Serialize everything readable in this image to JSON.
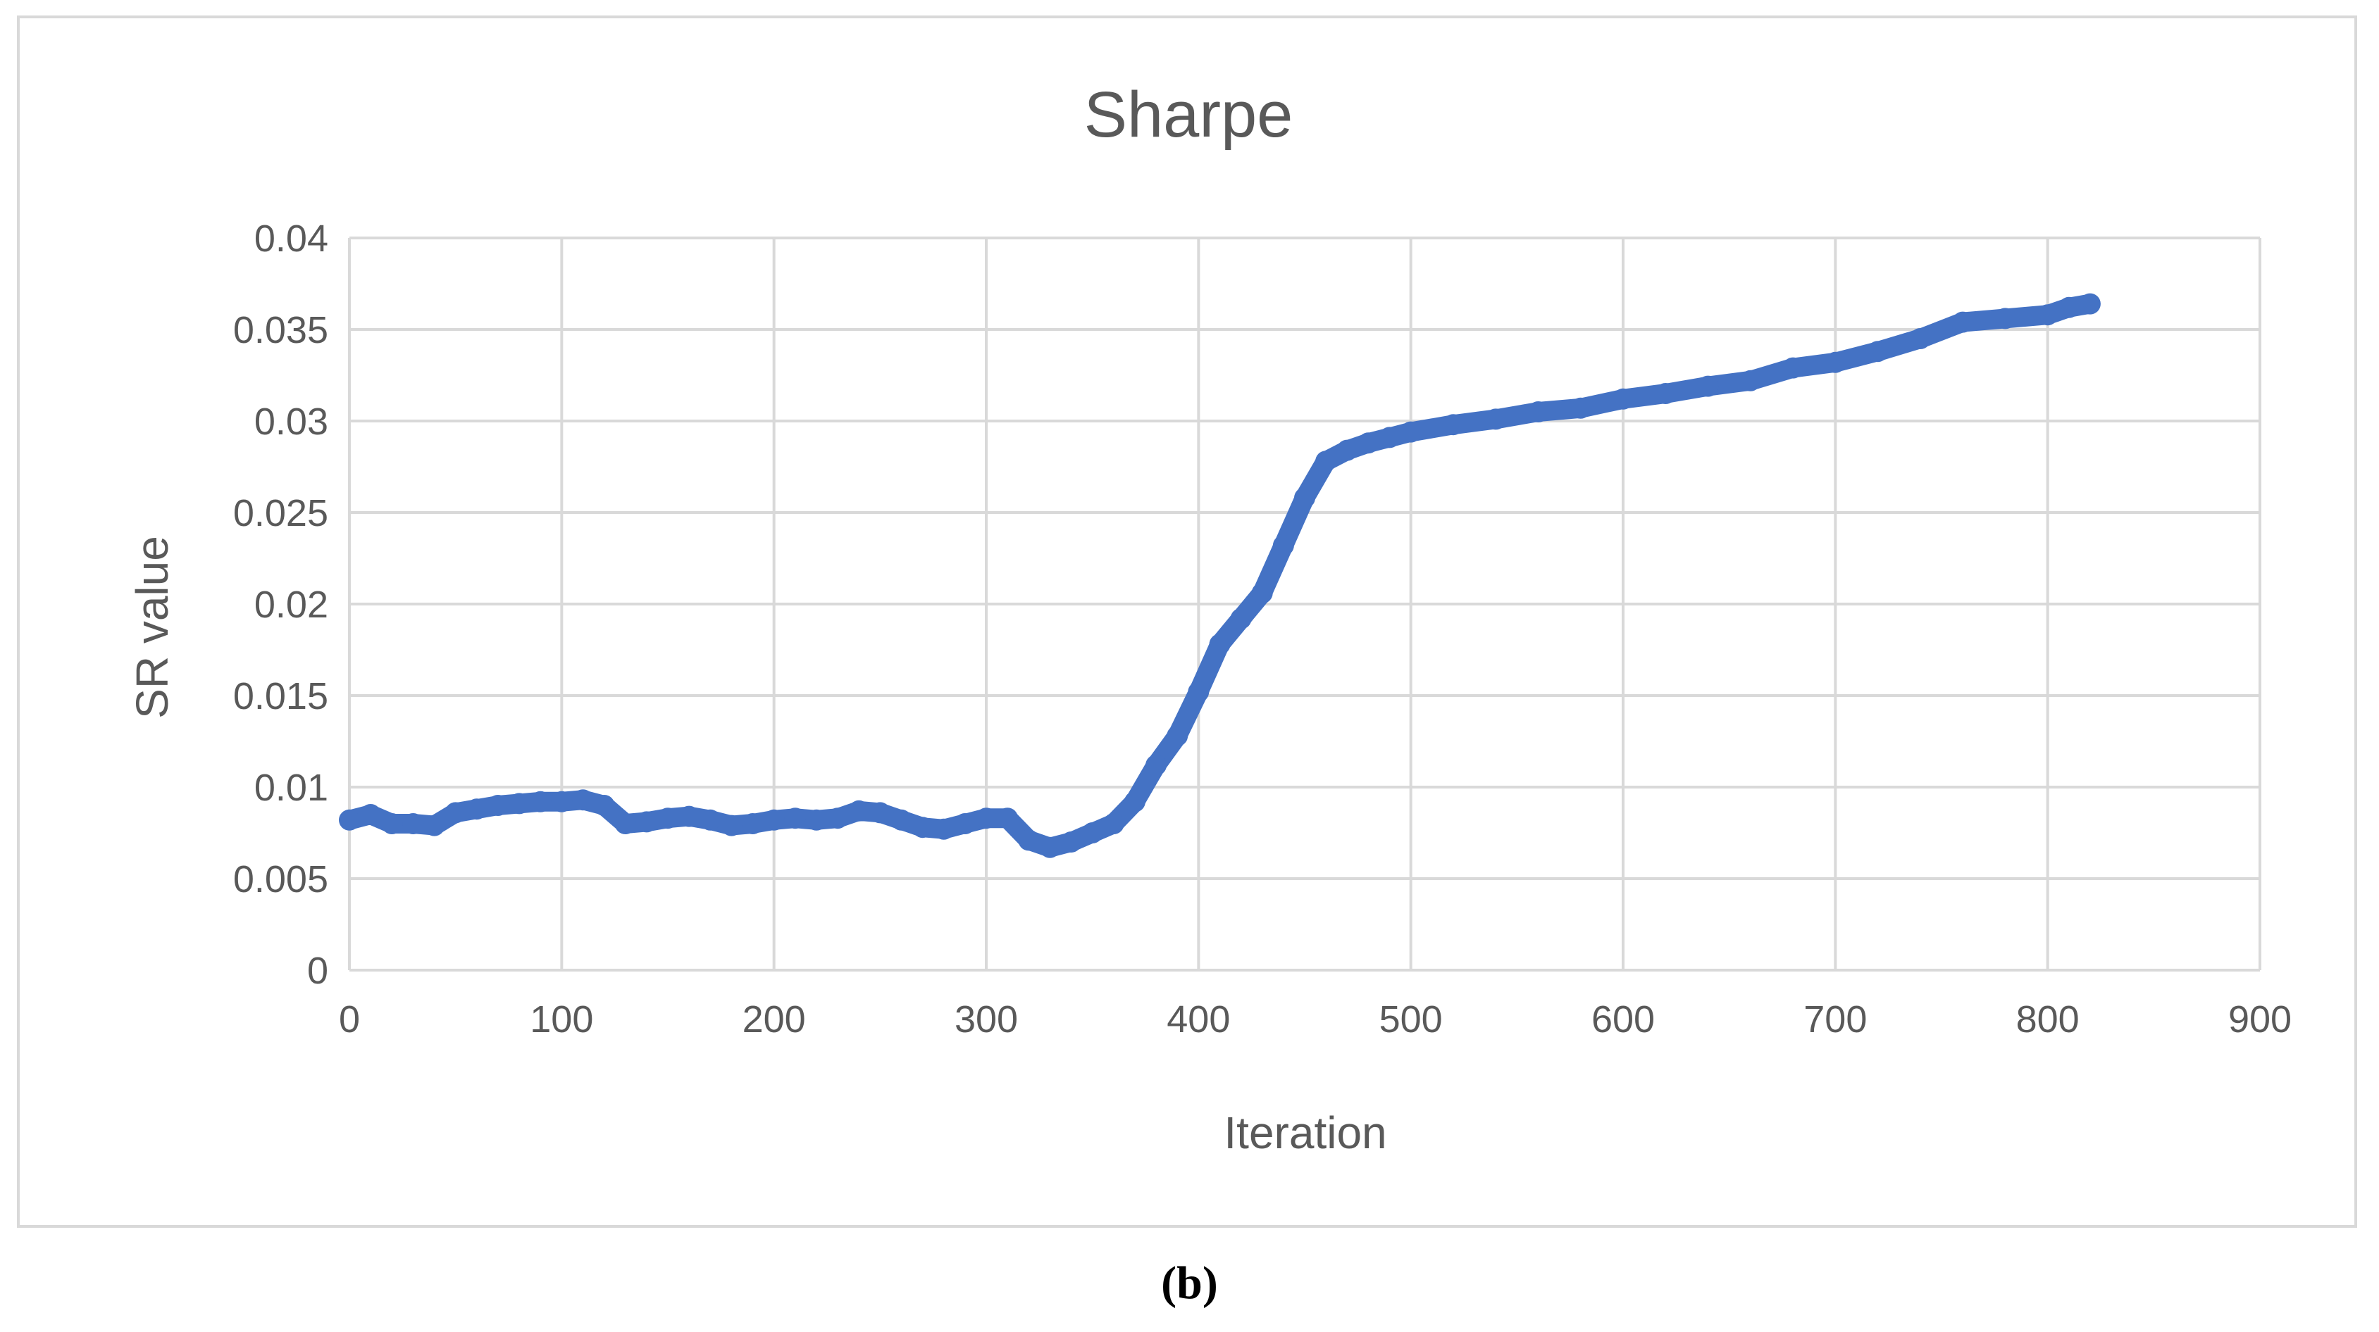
{
  "chart_data": {
    "type": "line",
    "title": "Sharpe",
    "xlabel": "Iteration",
    "ylabel": "SR value",
    "xlim": [
      0,
      900
    ],
    "ylim": [
      0,
      0.04
    ],
    "x_ticks": [
      "0",
      "100",
      "200",
      "300",
      "400",
      "500",
      "600",
      "700",
      "800",
      "900"
    ],
    "y_ticks": [
      "0",
      "0.005",
      "0.01",
      "0.015",
      "0.02",
      "0.025",
      "0.03",
      "0.035",
      "0.04"
    ],
    "grid": true,
    "legend": "none",
    "series": [
      {
        "color": "#4472c4",
        "x": [
          0,
          10,
          20,
          30,
          40,
          50,
          60,
          70,
          80,
          90,
          100,
          110,
          120,
          130,
          140,
          150,
          160,
          170,
          180,
          190,
          200,
          210,
          220,
          230,
          240,
          250,
          260,
          270,
          280,
          290,
          300,
          310,
          320,
          330,
          340,
          350,
          360,
          370,
          380,
          390,
          400,
          410,
          420,
          430,
          440,
          450,
          460,
          470,
          480,
          490,
          500,
          520,
          540,
          560,
          580,
          600,
          620,
          640,
          660,
          680,
          700,
          720,
          740,
          760,
          780,
          800,
          810,
          820
        ],
        "values": [
          0.0082,
          0.0085,
          0.008,
          0.008,
          0.0079,
          0.0086,
          0.0088,
          0.009,
          0.0091,
          0.0092,
          0.0092,
          0.0093,
          0.009,
          0.008,
          0.0081,
          0.0083,
          0.0084,
          0.0082,
          0.0079,
          0.008,
          0.0082,
          0.0083,
          0.0082,
          0.0083,
          0.0087,
          0.0086,
          0.0082,
          0.0078,
          0.0077,
          0.008,
          0.0083,
          0.0083,
          0.0071,
          0.0067,
          0.007,
          0.0075,
          0.008,
          0.0092,
          0.0112,
          0.0128,
          0.0152,
          0.0178,
          0.0192,
          0.0206,
          0.0232,
          0.0258,
          0.0278,
          0.0284,
          0.0288,
          0.0291,
          0.0294,
          0.0298,
          0.0301,
          0.0305,
          0.0307,
          0.0312,
          0.0315,
          0.0319,
          0.0322,
          0.0329,
          0.0332,
          0.0338,
          0.0345,
          0.0354,
          0.0356,
          0.0358,
          0.0362,
          0.0364
        ]
      }
    ]
  },
  "caption": "(b)"
}
